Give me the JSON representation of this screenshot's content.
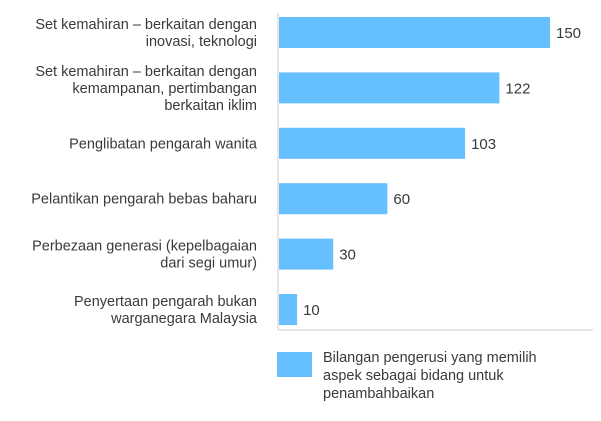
{
  "chart_data": {
    "type": "bar",
    "orientation": "horizontal",
    "categories": [
      [
        "Set kemahiran – berkaitan dengan",
        "inovasi, teknologi"
      ],
      [
        "Set kemahiran – berkaitan dengan",
        "kemampanan, pertimbangan",
        "berkaitan iklim"
      ],
      [
        "Penglibatan pengarah wanita"
      ],
      [
        "Pelantikan pengarah bebas baharu"
      ],
      [
        "Perbezaan generasi (kepelbagaian",
        "dari segi umur)"
      ],
      [
        "Penyertaan pengarah bukan",
        "warganegara Malaysia"
      ]
    ],
    "series": [
      {
        "name": "Bilangan pengerusi yang memilih aspek sebagai bidang untuk penambahbaikan",
        "values": [
          150,
          122,
          103,
          60,
          30,
          10
        ]
      }
    ],
    "data_labels": [
      "150",
      "122",
      "103",
      "60",
      "30",
      "10"
    ],
    "xlim": [
      0,
      150
    ],
    "grid": false,
    "legend_position": "bottom"
  },
  "colors": {
    "bar": "#66BFFF",
    "axis": "#cccccc"
  }
}
